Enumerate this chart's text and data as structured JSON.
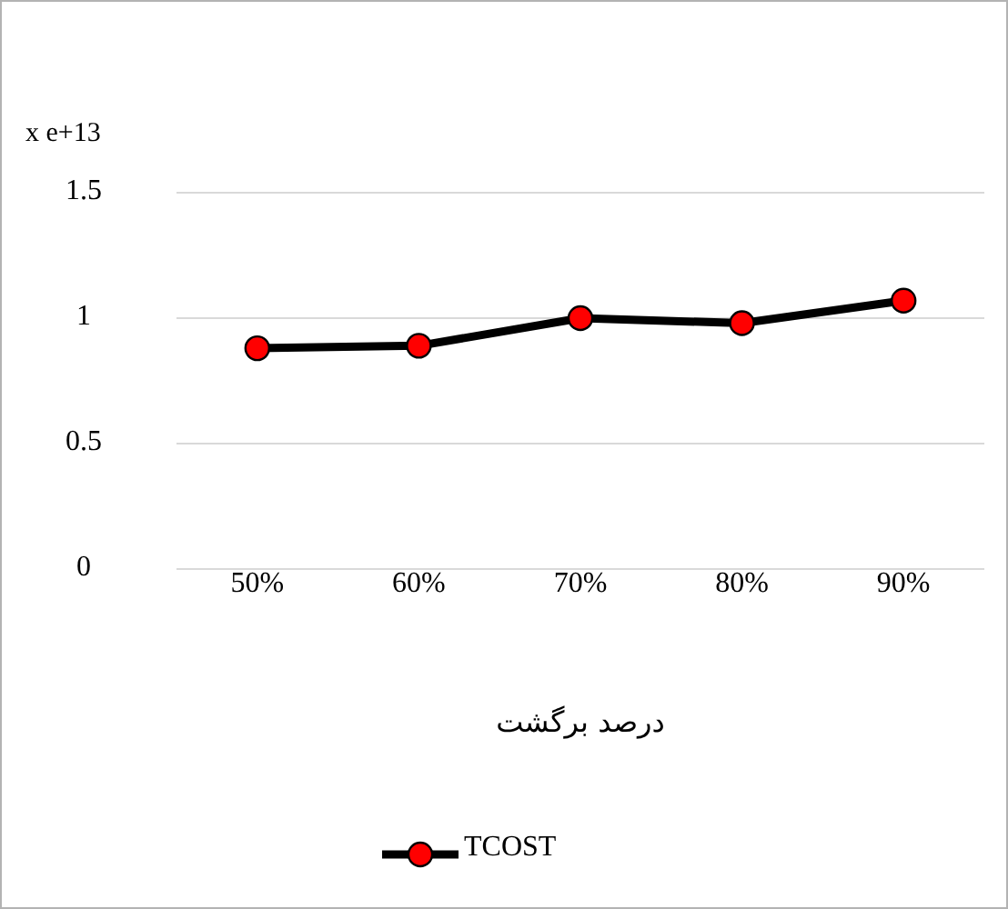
{
  "chart_data": {
    "type": "line",
    "ylabel": "x e+13",
    "xlabel": "درصد برگشت",
    "categories": [
      "50%",
      "60%",
      "70%",
      "80%",
      "90%"
    ],
    "series": [
      {
        "name": "TCOST",
        "color": "#ff0000",
        "values": [
          0.88,
          0.89,
          1.0,
          0.98,
          1.07
        ]
      }
    ],
    "ylim": [
      0,
      1.5
    ],
    "yticks": [
      0,
      0.5,
      1,
      1.5
    ],
    "grid": "y",
    "legend": "bottom",
    "marker": "circle",
    "line_style": "solid"
  }
}
